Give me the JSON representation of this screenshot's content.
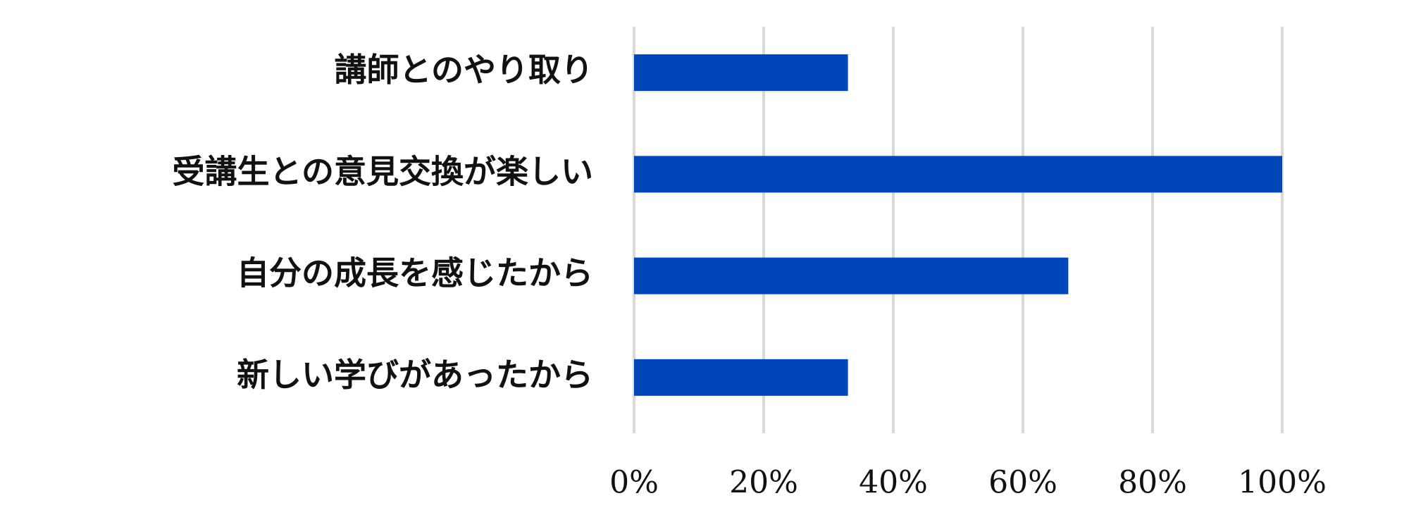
{
  "chart_data": {
    "type": "bar",
    "orientation": "horizontal",
    "categories": [
      "講師とのやり取り",
      "受講生との意見交換が楽しい",
      "自分の成長を感じたから",
      "新しい学びがあったから"
    ],
    "values": [
      33,
      100,
      67,
      33
    ],
    "color": "#0047bb",
    "xlim": [
      0,
      100
    ],
    "xticks": [
      {
        "value": 0,
        "label": "0%"
      },
      {
        "value": 20,
        "label": "20%"
      },
      {
        "value": 40,
        "label": "40%"
      },
      {
        "value": 60,
        "label": "60%"
      },
      {
        "value": 80,
        "label": "80%"
      },
      {
        "value": 100,
        "label": "100%"
      }
    ],
    "grid": true
  }
}
